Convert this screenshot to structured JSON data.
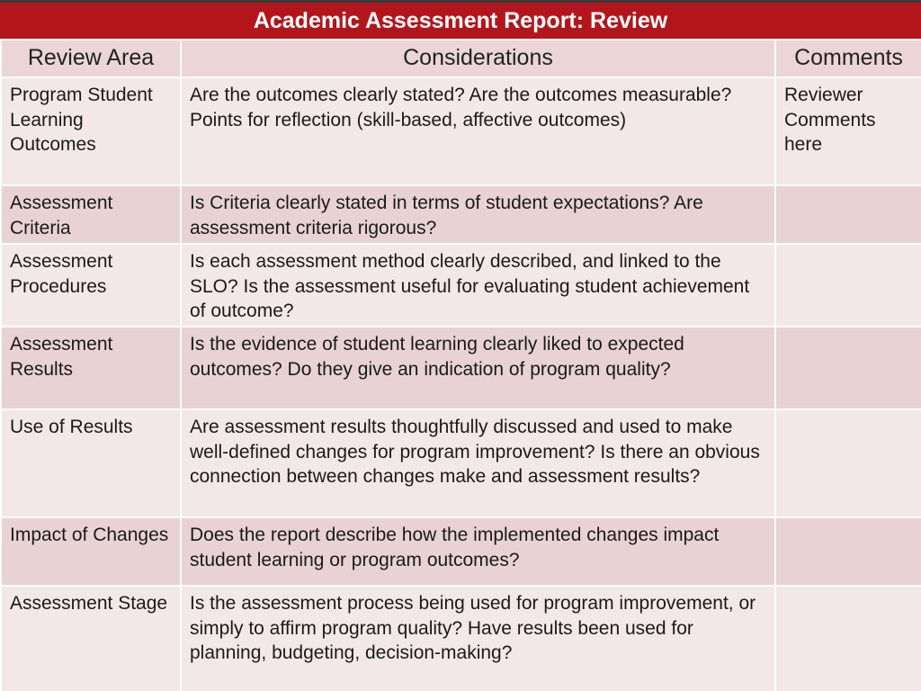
{
  "title": "Academic Assessment Report:  Review",
  "columns": {
    "review_area": "Review Area",
    "considerations": "Considerations",
    "comments": "Comments"
  },
  "rows": [
    {
      "area": "Program Student Learning Outcomes",
      "considerations": [
        "Are the outcomes clearly stated? Are the outcomes measurable?",
        "Points for reflection (skill-based, affective outcomes)"
      ],
      "comments": "Reviewer Comments here"
    },
    {
      "area": "Assessment Criteria",
      "considerations": [
        "Is Criteria clearly stated in terms of student expectations? Are assessment criteria rigorous?"
      ],
      "comments": ""
    },
    {
      "area": "Assessment Procedures",
      "considerations": [
        "Is each assessment method clearly described, and linked to the SLO? Is the assessment useful for evaluating student achievement of outcome?"
      ],
      "comments": ""
    },
    {
      "area": "Assessment Results",
      "considerations": [
        "Is the evidence of student learning clearly liked to expected outcomes? Do they give an indication of program quality?"
      ],
      "comments": ""
    },
    {
      "area": "Use of Results",
      "considerations": [
        "Are assessment results thoughtfully discussed and used to make well-defined changes for program improvement? Is there an obvious connection between changes make and assessment results?"
      ],
      "comments": ""
    },
    {
      "area": "Impact of Changes",
      "considerations": [
        "Does the report describe how the implemented changes impact student learning or program outcomes?"
      ],
      "comments": ""
    },
    {
      "area": "Assessment Stage",
      "considerations": [
        "Is the assessment process being used for program improvement, or simply to affirm program quality? Have results been used for planning, budgeting, decision-making?"
      ],
      "comments": ""
    }
  ],
  "colors": {
    "title_bar": "#b2161c",
    "header_row": "#ecd5d6",
    "row_light": "#f3e8e9",
    "row_dark": "#e8d2d4"
  }
}
